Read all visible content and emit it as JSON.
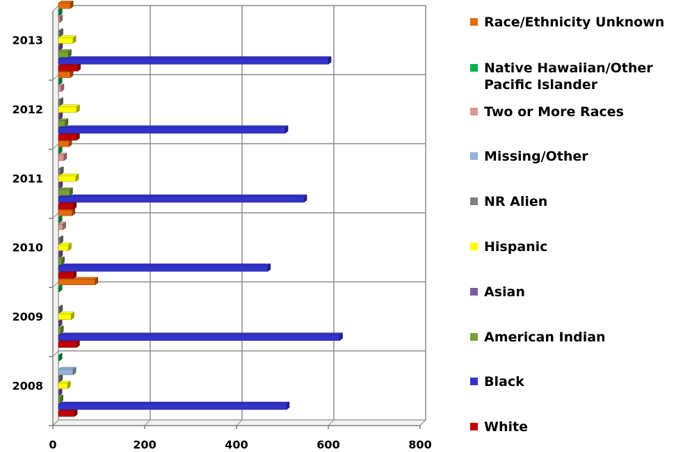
{
  "chart_data": {
    "type": "bar",
    "orientation": "horizontal",
    "categories": [
      "2008",
      "2009",
      "2010",
      "2011",
      "2012",
      "2013"
    ],
    "series": [
      {
        "name": "White",
        "color": "#C00000",
        "values": [
          35,
          40,
          33,
          33,
          40,
          42
        ]
      },
      {
        "name": "Black",
        "color": "#3333CC",
        "values": [
          497,
          613,
          456,
          535,
          494,
          588
        ]
      },
      {
        "name": "American Indian",
        "color": "#77A037",
        "values": [
          4,
          5,
          7,
          25,
          15,
          22
        ]
      },
      {
        "name": "Asian",
        "color": "#7E5AA0",
        "values": [
          2,
          2,
          3,
          3,
          3,
          3
        ]
      },
      {
        "name": "Hispanic",
        "color": "#FFFF00",
        "values": [
          20,
          28,
          22,
          38,
          40,
          32
        ]
      },
      {
        "name": "NR Alien",
        "color": "#7F7F7F",
        "values": [
          3,
          3,
          4,
          5,
          4,
          4
        ]
      },
      {
        "name": "Missing/Other",
        "color": "#95B3D7",
        "values": [
          32,
          0,
          0,
          0,
          0,
          0
        ]
      },
      {
        "name": "Two or More Races",
        "color": "#D99694",
        "values": [
          0,
          0,
          10,
          12,
          6,
          3
        ]
      },
      {
        "name": "Native Hawaiian/Other Pacific Islander",
        "color": "#00B050",
        "values": [
          2,
          2,
          2,
          2,
          2,
          2
        ]
      },
      {
        "name": "Race/Ethnicity Unknown",
        "color": "#E46C0A",
        "values": [
          0,
          80,
          30,
          23,
          26,
          26
        ]
      }
    ],
    "xlim": [
      0,
      800
    ],
    "x_ticks": [
      "0",
      "200",
      "400",
      "600",
      "800"
    ],
    "grid": true,
    "legend_position": "right",
    "title": "",
    "xlabel": "",
    "ylabel": ""
  }
}
